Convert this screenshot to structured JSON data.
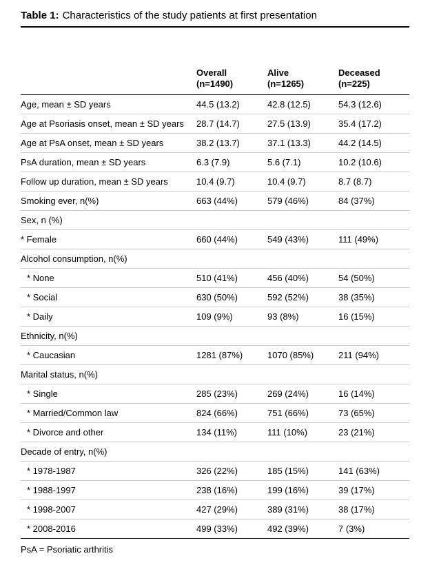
{
  "title": {
    "label": "Table 1:",
    "text": "Characteristics of the study patients at first presentation"
  },
  "table": {
    "columns": [
      {
        "line1": "Overall",
        "line2": "(n=1490)"
      },
      {
        "line1": "Alive",
        "line2": "(n=1265)"
      },
      {
        "line1": "Deceased",
        "line2": "(n=225)"
      }
    ],
    "rows": [
      {
        "label": "Age, mean ± SD years",
        "indent": 0,
        "values": [
          "44.5 (13.2)",
          "42.8 (12.5)",
          "54.3 (12.6)"
        ]
      },
      {
        "label": "Age at Psoriasis onset, mean ± SD years",
        "indent": 0,
        "values": [
          "28.7 (14.7)",
          "27.5 (13.9)",
          "35.4 (17.2)"
        ]
      },
      {
        "label": "Age at PsA onset, mean ± SD years",
        "indent": 0,
        "values": [
          "38.2 (13.7)",
          "37.1 (13.3)",
          "44.2 (14.5)"
        ]
      },
      {
        "label": "PsA duration, mean ± SD years",
        "indent": 0,
        "values": [
          "6.3 (7.9)",
          "5.6 (7.1)",
          "10.2 (10.6)"
        ]
      },
      {
        "label": "Follow up duration, mean ± SD years",
        "indent": 0,
        "values": [
          "10.4 (9.7)",
          "10.4 (9.7)",
          "8.7 (8.7)"
        ]
      },
      {
        "label": "Smoking ever, n(%)",
        "indent": 0,
        "values": [
          "663 (44%)",
          "579 (46%)",
          "84 (37%)"
        ]
      },
      {
        "label": "Sex, n (%)",
        "indent": 0,
        "values": [
          "",
          "",
          ""
        ]
      },
      {
        "label": "* Female",
        "indent": 0,
        "values": [
          "660 (44%)",
          "549 (43%)",
          "111 (49%)"
        ]
      },
      {
        "label": "Alcohol consumption, n(%)",
        "indent": 0,
        "values": [
          "",
          "",
          ""
        ]
      },
      {
        "label": "* None",
        "indent": 1,
        "values": [
          "510 (41%)",
          "456 (40%)",
          "54 (50%)"
        ]
      },
      {
        "label": "* Social",
        "indent": 1,
        "values": [
          "630 (50%)",
          "592 (52%)",
          "38 (35%)"
        ]
      },
      {
        "label": "* Daily",
        "indent": 1,
        "values": [
          "109 (9%)",
          "93 (8%)",
          "16 (15%)"
        ]
      },
      {
        "label": "Ethnicity, n(%)",
        "indent": 0,
        "values": [
          "",
          "",
          ""
        ]
      },
      {
        "label": "* Caucasian",
        "indent": 1,
        "values": [
          "1281 (87%)",
          "1070 (85%)",
          "211 (94%)"
        ]
      },
      {
        "label": "Marital status, n(%)",
        "indent": 0,
        "values": [
          "",
          "",
          ""
        ]
      },
      {
        "label": "* Single",
        "indent": 1,
        "values": [
          "285 (23%)",
          "269 (24%)",
          "16 (14%)"
        ]
      },
      {
        "label": "* Married/Common law",
        "indent": 1,
        "values": [
          "824 (66%)",
          "751 (66%)",
          "73 (65%)"
        ]
      },
      {
        "label": "* Divorce and other",
        "indent": 1,
        "values": [
          "134 (11%)",
          "111 (10%)",
          "23 (21%)"
        ]
      },
      {
        "label": "Decade of entry, n(%)",
        "indent": 0,
        "values": [
          "",
          "",
          ""
        ]
      },
      {
        "label": "* 1978-1987",
        "indent": 1,
        "values": [
          "326 (22%)",
          "185 (15%)",
          "141 (63%)"
        ]
      },
      {
        "label": "* 1988-1997",
        "indent": 1,
        "values": [
          "238 (16%)",
          "199 (16%)",
          "39 (17%)"
        ]
      },
      {
        "label": "* 1998-2007",
        "indent": 1,
        "values": [
          "427 (29%)",
          "389 (31%)",
          "38 (17%)"
        ]
      },
      {
        "label": "* 2008-2016",
        "indent": 1,
        "values": [
          "499 (33%)",
          "492 (39%)",
          "7 (3%)"
        ]
      }
    ]
  },
  "footnote": "PsA = Psoriatic arthritis"
}
